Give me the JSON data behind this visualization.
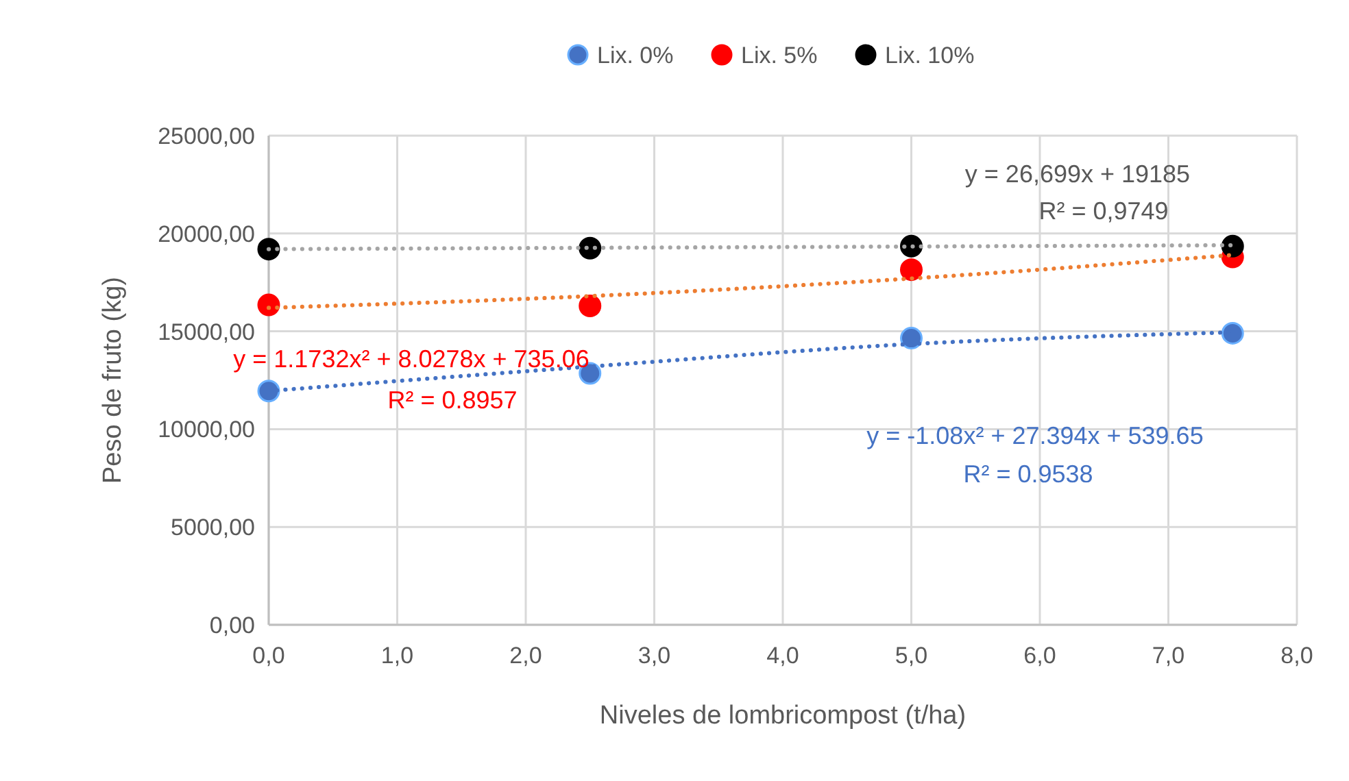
{
  "chart_data": {
    "type": "scatter",
    "xlabel": "Niveles de lombricompost (t/ha)",
    "ylabel": "Peso de fruto (kg)",
    "xlim": [
      0,
      8
    ],
    "ylim": [
      0,
      25000
    ],
    "xticks": [
      {
        "value": 0,
        "label": "0,0"
      },
      {
        "value": 1,
        "label": "1,0"
      },
      {
        "value": 2,
        "label": "2,0"
      },
      {
        "value": 3,
        "label": "3,0"
      },
      {
        "value": 4,
        "label": "4,0"
      },
      {
        "value": 5,
        "label": "5,0"
      },
      {
        "value": 6,
        "label": "6,0"
      },
      {
        "value": 7,
        "label": "7,0"
      },
      {
        "value": 8,
        "label": "8,0"
      }
    ],
    "yticks": [
      {
        "value": 0,
        "label": "0,00"
      },
      {
        "value": 5000,
        "label": "5000,00"
      },
      {
        "value": 10000,
        "label": "10000,00"
      },
      {
        "value": 15000,
        "label": "15000,00"
      },
      {
        "value": 20000,
        "label": "20000,00"
      },
      {
        "value": 25000,
        "label": "25000,00"
      }
    ],
    "grid": true,
    "legend": "top",
    "marker": "circle",
    "series": [
      {
        "name": "Lix. 0%",
        "color": "#4472c4",
        "x": [
          0,
          2.5,
          5,
          7.5
        ],
        "values": [
          11950,
          12850,
          14650,
          14900
        ]
      },
      {
        "name": "Lix. 5%",
        "color": "#ff0000",
        "x": [
          0,
          2.5,
          5,
          7.5
        ],
        "values": [
          16350,
          16300,
          18150,
          18800
        ]
      },
      {
        "name": "Lix. 10%",
        "color": "#000000",
        "x": [
          0,
          2.5,
          5,
          7.5
        ],
        "values": [
          19200,
          19250,
          19350,
          19350
        ]
      },
      {
        "type": "line",
        "color": "#4472c4",
        "line_style": "dotted",
        "marker": "none",
        "x": [
          0,
          2.5,
          5,
          7.5
        ],
        "values": [
          11950,
          13200,
          14350,
          14950
        ]
      },
      {
        "type": "line",
        "color": "#ed7d31",
        "line_style": "dotted",
        "marker": "none",
        "x": [
          0,
          2.5,
          5,
          7.5
        ],
        "values": [
          16200,
          16800,
          17700,
          18900
        ]
      },
      {
        "type": "line",
        "color": "#a5a5a5",
        "line_style": "dotted",
        "marker": "none",
        "x": [
          0,
          7.5
        ],
        "values": [
          19200,
          19400
        ]
      }
    ],
    "annotations": [
      "y = -1.08x² + 27.394x + 539.65",
      "R² = 0.9538",
      "y = 1.1732x² + 8.0278x + 735.06",
      "R² = 0.8957",
      "y = 26,699x + 19185",
      "R² = 0,9749"
    ]
  }
}
